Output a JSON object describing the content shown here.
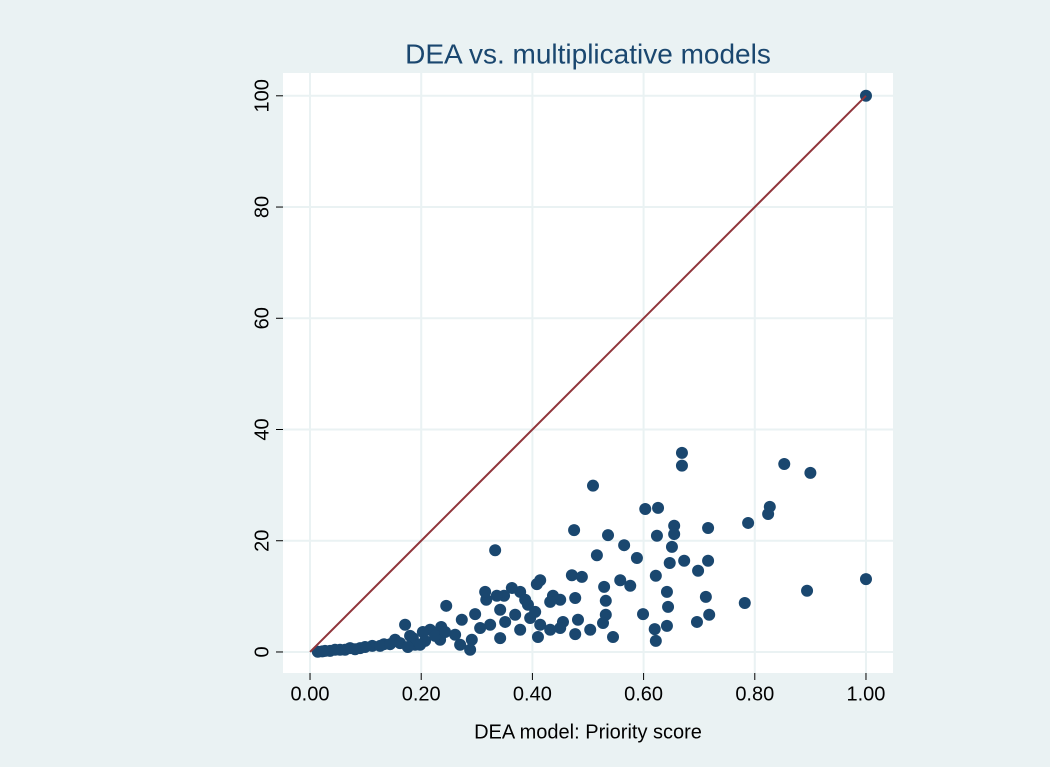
{
  "chart_data": {
    "type": "scatter",
    "title": "DEA vs. multiplicative models",
    "x_label": "DEA model: Priority score",
    "xlim": [
      -0.0486,
      1.0486
    ],
    "ylim": [
      -3.78,
      104.1
    ],
    "xticks": [
      {
        "value": 0,
        "label": "0.00"
      },
      {
        "value": 0.2,
        "label": "0.20"
      },
      {
        "value": 0.4,
        "label": "0.40"
      },
      {
        "value": 0.6,
        "label": "0.60"
      },
      {
        "value": 0.8,
        "label": "0.80"
      },
      {
        "value": 1,
        "label": "1.00"
      }
    ],
    "yticks": [
      0,
      20,
      40,
      60,
      80,
      100
    ],
    "grid": true,
    "series": [
      {
        "type": "scatter",
        "color": "#1a476f",
        "x": [
          1.0,
          1.0,
          0.894,
          0.9,
          0.853,
          0.827,
          0.824,
          0.788,
          0.782,
          0.716,
          0.716,
          0.712,
          0.718,
          0.696,
          0.698,
          0.669,
          0.669,
          0.673,
          0.655,
          0.655,
          0.651,
          0.642,
          0.644,
          0.642,
          0.647,
          0.624,
          0.626,
          0.603,
          0.622,
          0.62,
          0.622,
          0.599,
          0.588,
          0.576,
          0.565,
          0.558,
          0.545,
          0.536,
          0.532,
          0.532,
          0.527,
          0.529,
          0.516,
          0.509,
          0.477,
          0.482,
          0.477,
          0.471,
          0.475,
          0.489,
          0.455,
          0.45,
          0.437,
          0.432,
          0.414,
          0.408,
          0.392,
          0.378,
          0.363,
          0.349,
          0.333,
          0.317,
          0.336,
          0.315,
          0.297,
          0.273,
          0.245,
          0.236,
          0.216,
          0.203,
          0.18,
          0.171,
          0.153,
          0.133,
          0.112,
          0.09,
          0.063,
          0.036,
          0.014,
          0.414,
          0.41,
          0.378,
          0.351,
          0.324,
          0.291,
          0.342,
          0.261,
          0.234,
          0.189,
          0.207,
          0.288,
          0.27,
          0.342,
          0.369,
          0.396,
          0.45,
          0.504,
          0.432,
          0.405,
          0.387,
          0.306,
          0.072,
          0.054,
          0.126,
          0.162,
          0.144,
          0.225,
          0.243,
          0.099,
          0.081,
          0.027,
          0.022,
          0.045,
          0.185,
          0.198,
          0.176
        ],
        "y": [
          100,
          13.1,
          11,
          32.2,
          33.8,
          26.1,
          24.8,
          23.2,
          8.8,
          22.3,
          16.4,
          9.9,
          6.7,
          5.4,
          14.6,
          35.8,
          33.5,
          16.4,
          22.7,
          21.2,
          18.9,
          10.8,
          8.1,
          4.7,
          16.0,
          20.9,
          25.9,
          25.7,
          13.7,
          4.1,
          2.0,
          6.8,
          16.9,
          11.9,
          19.2,
          12.9,
          2.7,
          21.0,
          9.2,
          6.7,
          5.2,
          11.7,
          17.4,
          29.9,
          3.2,
          5.8,
          9.7,
          13.8,
          21.9,
          13.5,
          5.4,
          9.4,
          10.1,
          9.0,
          12.9,
          12.2,
          8.5,
          10.8,
          11.5,
          10.1,
          18.3,
          9.4,
          10.1,
          10.8,
          6.8,
          5.8,
          8.3,
          4.5,
          4.0,
          3.6,
          2.9,
          4.9,
          2.2,
          1.4,
          1.1,
          0.7,
          0.4,
          0.2,
          0.05,
          4.9,
          2.7,
          4.0,
          5.4,
          4.9,
          2.2,
          2.5,
          3.1,
          2.2,
          1.3,
          2.0,
          0.4,
          1.3,
          7.6,
          6.7,
          6.1,
          4.3,
          4.0,
          4.0,
          7.2,
          9.4,
          4.3,
          0.7,
          0.4,
          1.1,
          1.6,
          1.4,
          2.9,
          3.6,
          0.9,
          0.5,
          0.2,
          0.1,
          0.4,
          2.5,
          1.3,
          0.9
        ]
      },
      {
        "type": "line",
        "color": "#90353b",
        "x": [
          0,
          1
        ],
        "y": [
          0,
          100
        ]
      }
    ]
  }
}
